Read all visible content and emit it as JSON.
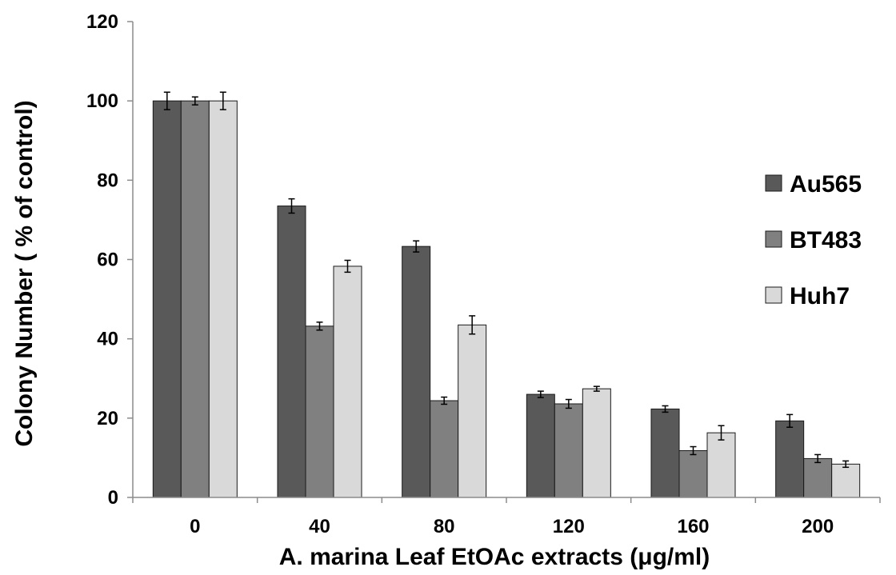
{
  "chart_data": {
    "type": "bar",
    "title": "",
    "xlabel": "A. marina Leaf EtOAc extracts (μg/ml)",
    "ylabel": "Colony Number ( % of control)",
    "ylim": [
      0,
      120
    ],
    "yticks": [
      0,
      20,
      40,
      60,
      80,
      100,
      120
    ],
    "categories": [
      "0",
      "40",
      "80",
      "120",
      "160",
      "200"
    ],
    "series": [
      {
        "name": "Au565",
        "color": "#595959",
        "values": [
          100,
          73.5,
          63.3,
          26,
          22.3,
          19.3
        ],
        "errors": [
          2.2,
          1.8,
          1.4,
          0.8,
          0.8,
          1.6
        ]
      },
      {
        "name": "BT483",
        "color": "#808080",
        "values": [
          100,
          43.2,
          24.4,
          23.6,
          11.8,
          9.8
        ],
        "errors": [
          1.0,
          1.0,
          0.9,
          1.1,
          1.0,
          1.0
        ]
      },
      {
        "name": "Huh7",
        "color": "#d9d9d9",
        "values": [
          100,
          58.3,
          43.5,
          27.4,
          16.3,
          8.4
        ],
        "errors": [
          2.2,
          1.5,
          2.3,
          0.6,
          1.8,
          0.8
        ]
      }
    ],
    "grid": false,
    "legend_position": "right"
  }
}
